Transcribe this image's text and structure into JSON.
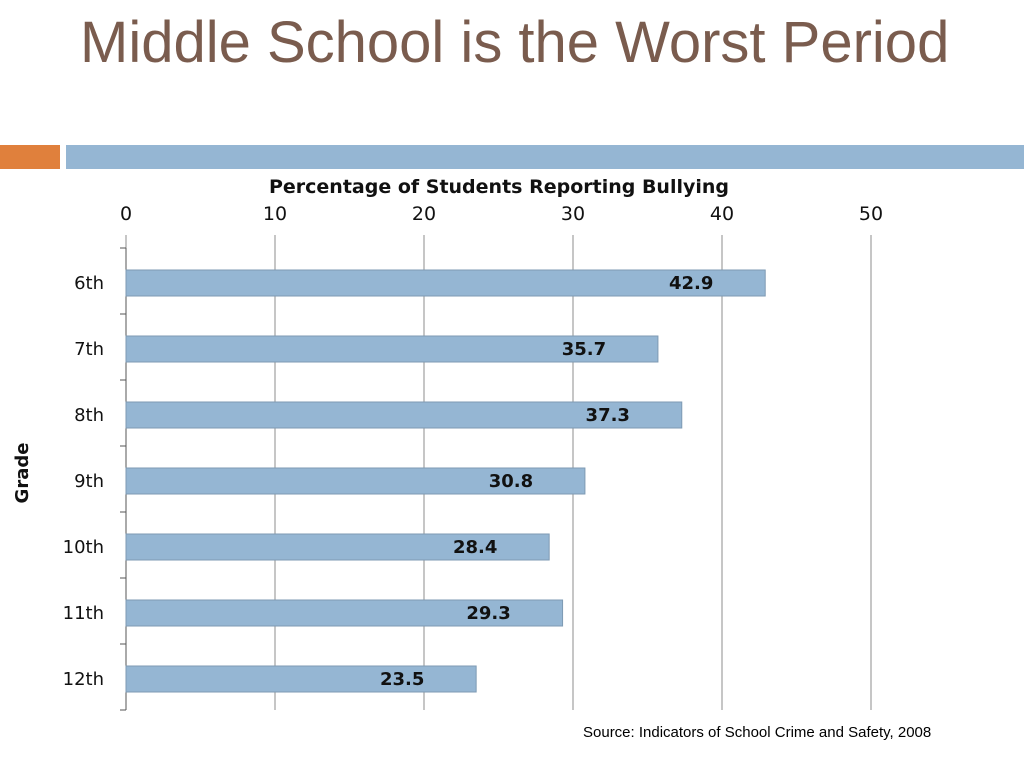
{
  "slide": {
    "title": "Middle School is the Worst Period",
    "source": "Source: Indicators of School Crime and Safety, 2008"
  },
  "colors": {
    "title": "#7a5c4e",
    "accent_orange": "#e0803c",
    "accent_blue": "#95b6d3",
    "bar_fill": "#95b6d3",
    "gridline": "#8c8c8c"
  },
  "chart_data": {
    "type": "bar",
    "orientation": "horizontal",
    "title": "Percentage of Students Reporting Bullying",
    "xlabel": "",
    "ylabel": "Grade",
    "xlim": [
      0,
      50
    ],
    "xticks": [
      0,
      10,
      20,
      30,
      40,
      50
    ],
    "x_axis_position": "top",
    "grid": true,
    "categories": [
      "6th",
      "7th",
      "8th",
      "9th",
      "10th",
      "11th",
      "12th"
    ],
    "values": [
      42.9,
      35.7,
      37.3,
      30.8,
      28.4,
      29.3,
      23.5
    ],
    "data_labels": [
      "42.9",
      "35.7",
      "37.3",
      "30.8",
      "28.4",
      "29.3",
      "23.5"
    ]
  }
}
